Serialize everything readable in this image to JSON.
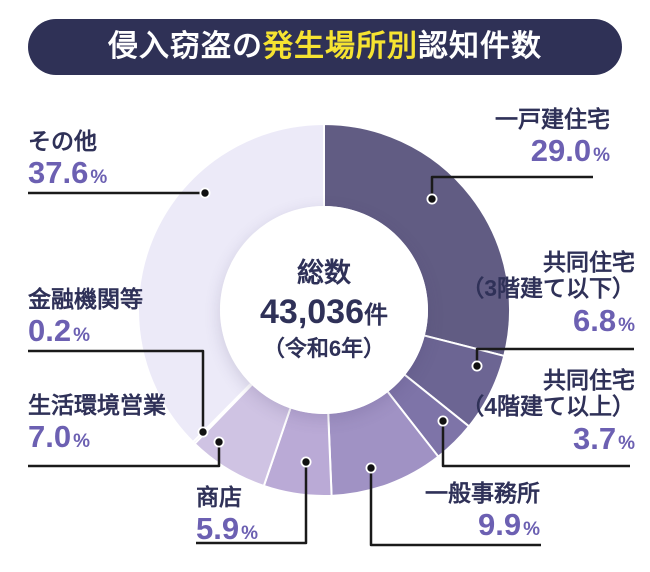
{
  "title": {
    "pre": "侵入窃盗の",
    "highlight": "発生場所別",
    "post": "認知件数"
  },
  "donut_center": {
    "heading": "総数",
    "value": "43,036",
    "unit": "件",
    "note": "（令和6年）"
  },
  "ui": {
    "percent_sign": "%"
  },
  "labels": [
    {
      "line1": "一戸建住宅",
      "pct": "29.0"
    },
    {
      "line1": "共同住宅",
      "line2": "（3階建て以下）",
      "pct": "6.8"
    },
    {
      "line1": "共同住宅",
      "line2": "（4階建て以上）",
      "pct": "3.7"
    },
    {
      "line1": "一般事務所",
      "pct": "9.9"
    },
    {
      "line1": "商店",
      "pct": "5.9"
    },
    {
      "line1": "生活環境営業",
      "pct": "7.0"
    },
    {
      "line1": "金融機関等",
      "pct": "0.2"
    },
    {
      "line1": "その他",
      "pct": "37.6"
    }
  ],
  "chart_data": {
    "type": "pie",
    "donut": true,
    "title": "侵入窃盗の発生場所別認知件数",
    "categories": [
      "一戸建住宅",
      "共同住宅（3階建て以下）",
      "共同住宅（4階建て以上）",
      "一般事務所",
      "商店",
      "生活環境営業",
      "金融機関等",
      "その他"
    ],
    "values": [
      29.0,
      6.8,
      3.7,
      9.9,
      5.9,
      7.0,
      0.2,
      37.6
    ],
    "unit": "%",
    "colors": [
      "#615c83",
      "#6c6593",
      "#7e74a8",
      "#a092c4",
      "#baaad6",
      "#cfc3e3",
      "#d9d0ea",
      "#eceaf8"
    ],
    "start_angle_deg": 0,
    "direction": "clockwise",
    "total_count": "43,036件",
    "total_year": "令和6年",
    "legend_position": "around-chart-callouts"
  },
  "colors": {
    "title_bar_bg": "#2f3156",
    "title_text": "#ffffff",
    "title_highlight": "#f6e331",
    "label_text": "#2f3158",
    "percent_text": "#6c60b2",
    "leader_line": "#1a1a1a",
    "background": "#ffffff"
  }
}
